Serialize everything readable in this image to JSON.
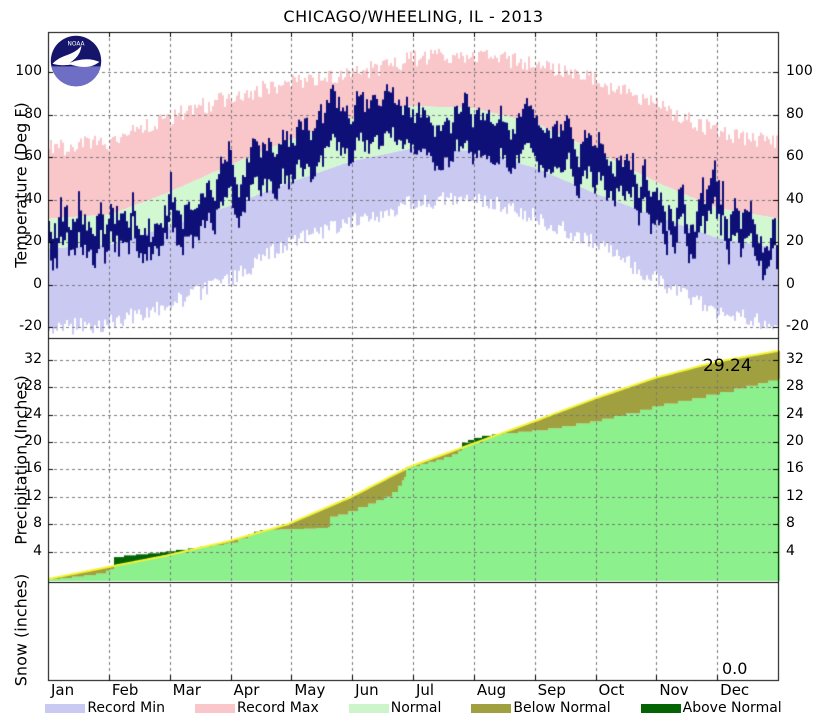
{
  "title": "CHICAGO/WHEELING, IL - 2013",
  "logo": {
    "name": "NOAA",
    "label": "noaa"
  },
  "months": [
    "Jan",
    "Feb",
    "Mar",
    "Apr",
    "May",
    "Jun",
    "Jul",
    "Aug",
    "Sep",
    "Oct",
    "Nov",
    "Dec"
  ],
  "axes": {
    "temperature_label": "Temperature (Deg F)",
    "precipitation_label": "Precipitation (Inches)",
    "snow_label": "Snow (inches)"
  },
  "annotations": {
    "precip_total": "29.24",
    "snow_total": "0.0"
  },
  "legend": {
    "items": [
      {
        "label": "Record Min",
        "color": "#c9c9f2"
      },
      {
        "label": "Record Max",
        "color": "#f9c6ca"
      },
      {
        "label": "Normal",
        "color": "#ccf5cc"
      },
      {
        "label": "Below Normal",
        "color": "#a0a040"
      },
      {
        "label": "Above Normal",
        "color": "#046404"
      }
    ]
  },
  "colors": {
    "record_min": "#c9c9f2",
    "record_max": "#f9c6ca",
    "normal_band": "#d2f8d2",
    "actual_temp": "#0f0f78",
    "precip_actual_fill": "#8cf08c",
    "below_normal": "#a0a040",
    "above_normal": "#046404",
    "normal_line": "#f5f533",
    "grid": "#7a7a7a",
    "border": "#000000"
  },
  "chart_data": [
    {
      "type": "bar",
      "name": "temperature",
      "title": "Daily temperature range vs records and normals",
      "xlabel": "",
      "ylabel": "Temperature (Deg F)",
      "ylim": [
        -25,
        119
      ],
      "yticks": [
        -20,
        0,
        20,
        40,
        60,
        80,
        100
      ],
      "x_month_boundaries_doy": [
        0,
        31,
        59,
        90,
        120,
        151,
        181,
        212,
        243,
        273,
        304,
        334,
        365
      ],
      "series": [
        {
          "name": "record_max_monthly",
          "values": [
            60,
            63,
            74,
            84,
            91,
            95,
            102,
            104,
            100,
            92,
            80,
            68,
            62
          ]
        },
        {
          "name": "record_min_monthly",
          "values": [
            -17,
            -14,
            -6,
            6,
            24,
            33,
            42,
            45,
            36,
            23,
            6,
            -9,
            -15
          ]
        },
        {
          "name": "normal_high_monthly",
          "values": [
            31,
            33,
            43,
            56,
            68,
            78,
            84,
            83,
            76,
            63,
            48,
            36,
            31
          ]
        },
        {
          "name": "normal_low_monthly",
          "values": [
            17,
            19,
            27,
            37,
            48,
            58,
            64,
            63,
            55,
            43,
            32,
            22,
            17
          ]
        },
        {
          "name": "actual_mean_high_monthly",
          "values": [
            30,
            31,
            37,
            54,
            70,
            79,
            84,
            83,
            79,
            63,
            44,
            30,
            33
          ]
        },
        {
          "name": "actual_mean_low_monthly",
          "values": [
            16,
            17,
            24,
            36,
            50,
            60,
            66,
            64,
            59,
            45,
            30,
            16,
            20
          ]
        }
      ],
      "legend_position": "bottom",
      "grid": true
    },
    {
      "type": "area",
      "name": "precipitation",
      "title": "Cumulative precipitation, actual vs normal",
      "ylabel": "Precipitation (Inches)",
      "ylim": [
        0,
        35.2
      ],
      "yticks": [
        4,
        8,
        12,
        16,
        20,
        24,
        28,
        32
      ],
      "actual_cumulative_points_doy_inches": [
        [
          0,
          0
        ],
        [
          6,
          0.15
        ],
        [
          12,
          0.35
        ],
        [
          18,
          0.55
        ],
        [
          24,
          0.8
        ],
        [
          29,
          1.2
        ],
        [
          31,
          1.4
        ],
        [
          33,
          3.2
        ],
        [
          38,
          3.45
        ],
        [
          44,
          3.6
        ],
        [
          50,
          3.75
        ],
        [
          56,
          3.95
        ],
        [
          59,
          4.05
        ],
        [
          64,
          4.25
        ],
        [
          70,
          4.45
        ],
        [
          76,
          4.7
        ],
        [
          82,
          4.95
        ],
        [
          88,
          5.15
        ],
        [
          90,
          5.3
        ],
        [
          95,
          5.9
        ],
        [
          100,
          6.5
        ],
        [
          103,
          6.9
        ],
        [
          106,
          7.1
        ],
        [
          110,
          7.2
        ],
        [
          116,
          7.25
        ],
        [
          122,
          7.3
        ],
        [
          128,
          7.35
        ],
        [
          134,
          7.45
        ],
        [
          140,
          7.6
        ],
        [
          141,
          9.1
        ],
        [
          145,
          9.4
        ],
        [
          150,
          9.9
        ],
        [
          155,
          10.5
        ],
        [
          160,
          11.0
        ],
        [
          164,
          11.5
        ],
        [
          168,
          12.0
        ],
        [
          172,
          12.7
        ],
        [
          175,
          13.6
        ],
        [
          177,
          14.4
        ],
        [
          178,
          14.9
        ],
        [
          179,
          16.3
        ],
        [
          182,
          16.5
        ],
        [
          186,
          16.8
        ],
        [
          190,
          17.1
        ],
        [
          194,
          17.4
        ],
        [
          198,
          17.8
        ],
        [
          202,
          18.2
        ],
        [
          205,
          18.7
        ],
        [
          207,
          19.9
        ],
        [
          210,
          20.3
        ],
        [
          213,
          20.6
        ],
        [
          217,
          20.9
        ],
        [
          222,
          21.1
        ],
        [
          228,
          21.3
        ],
        [
          235,
          21.5
        ],
        [
          242,
          21.7
        ],
        [
          250,
          22.0
        ],
        [
          257,
          22.3
        ],
        [
          264,
          22.7
        ],
        [
          271,
          23.0
        ],
        [
          277,
          23.4
        ],
        [
          283,
          23.8
        ],
        [
          289,
          24.2
        ],
        [
          296,
          24.7
        ],
        [
          302,
          25.2
        ],
        [
          308,
          25.6
        ],
        [
          315,
          26.0
        ],
        [
          322,
          26.4
        ],
        [
          329,
          26.9
        ],
        [
          336,
          27.3
        ],
        [
          343,
          27.8
        ],
        [
          349,
          28.2
        ],
        [
          355,
          28.6
        ],
        [
          360,
          28.95
        ],
        [
          365,
          29.24
        ]
      ],
      "normal_cumulative_month_start_inches": [
        0,
        1.8,
        3.4,
        5.5,
        8.0,
        11.9,
        16.4,
        19.7,
        23.0,
        26.3,
        29.4,
        31.7,
        33.3
      ],
      "final_actual": 29.24,
      "final_normal": 33.3,
      "grid": true
    },
    {
      "type": "area",
      "name": "snow",
      "title": "Cumulative snow",
      "ylabel": "Snow (inches)",
      "values": [],
      "final_actual": 0.0,
      "grid": true
    }
  ]
}
